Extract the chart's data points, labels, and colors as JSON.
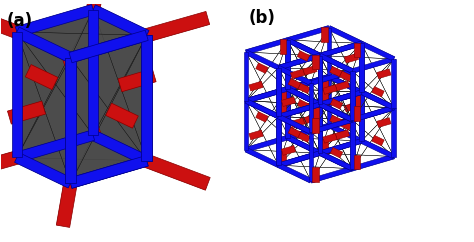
{
  "background_color": "#ffffff",
  "label_a": "(a)",
  "label_b": "(b)",
  "label_fontsize": 12,
  "label_fontweight": "bold",
  "blue_color": "#1010ee",
  "red_color": "#cc1010",
  "dark_color": "#404040",
  "dark_face_color": "#555555",
  "figsize": [
    4.74,
    2.42
  ],
  "dpi": 100
}
